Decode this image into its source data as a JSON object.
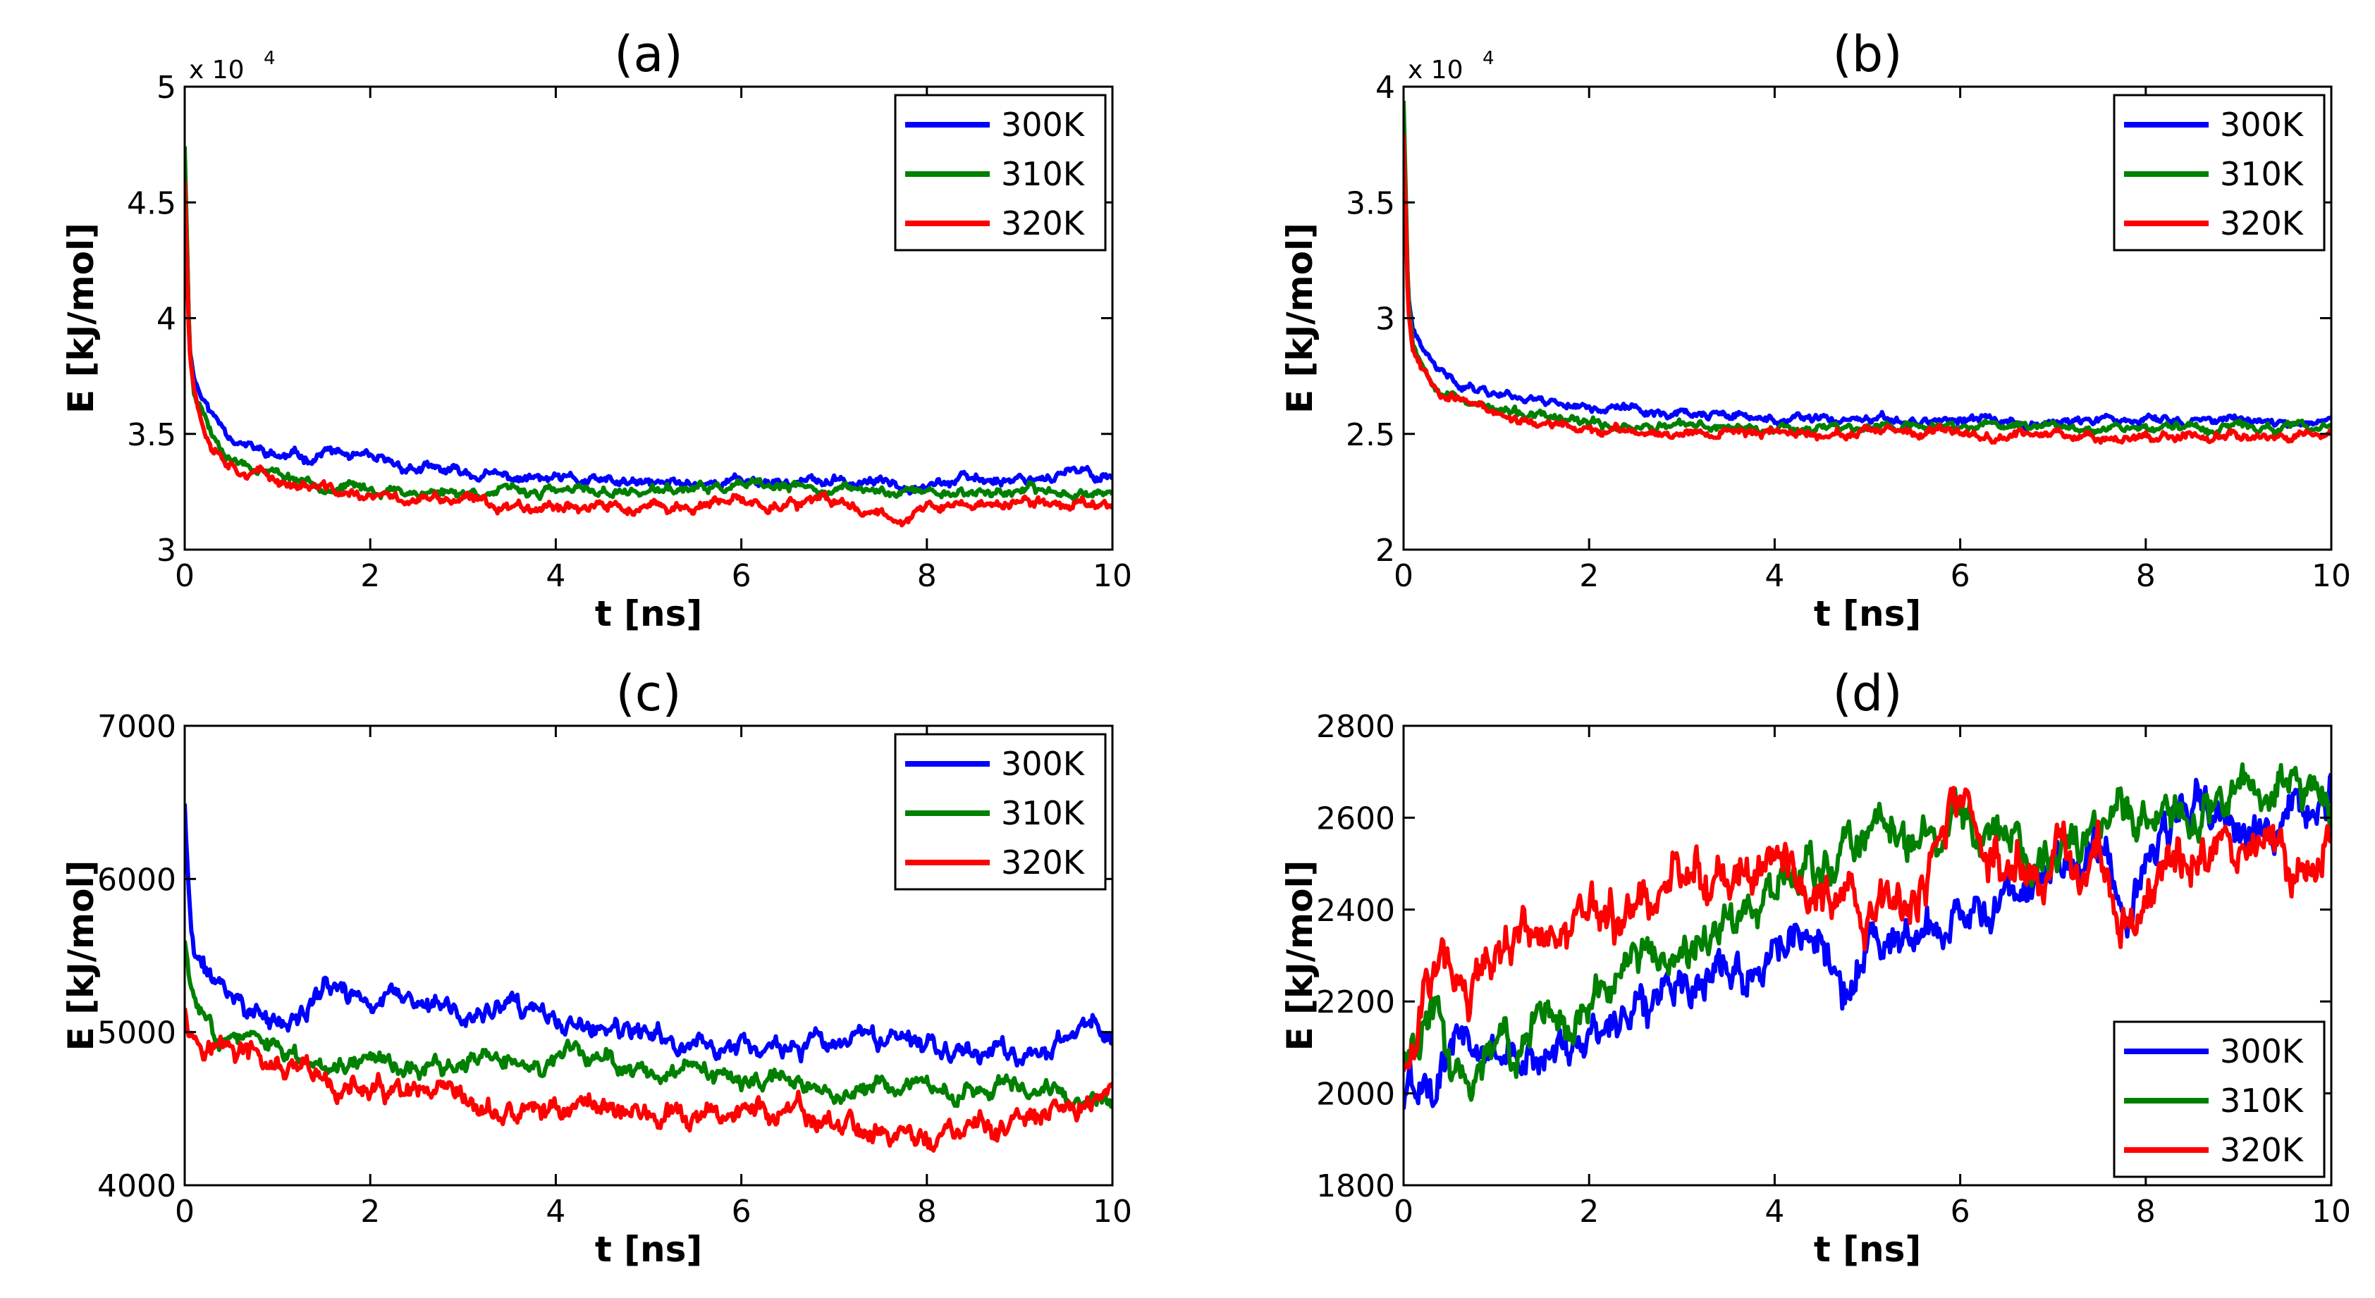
{
  "figure": {
    "panel_count": 4
  },
  "colors": {
    "300K": "#0000ff",
    "310K": "#008000",
    "320K": "#ff0000"
  },
  "chart_data": [
    {
      "type": "line",
      "title": "(a)",
      "xlabel": "t [ns]",
      "ylabel": "E [kJ/mol]",
      "xlim": [
        0,
        10
      ],
      "ylim": [
        30000,
        50000
      ],
      "xticks": [
        0,
        2,
        4,
        6,
        8,
        10
      ],
      "xtick_labels": [
        "0",
        "2",
        "4",
        "6",
        "8",
        "10"
      ],
      "yticks": [
        30000,
        35000,
        40000,
        45000,
        50000
      ],
      "ytick_labels": [
        "3",
        "3.5",
        "4",
        "4.5",
        "5"
      ],
      "y_multiplier": {
        "base": "x 10",
        "exponent": "4"
      },
      "legend": {
        "position": "top-right",
        "entries": [
          "300K",
          "310K",
          "320K"
        ]
      },
      "grid": false,
      "series": [
        {
          "name": "300K",
          "x": [
            0,
            0.05,
            0.1,
            0.2,
            0.3,
            0.5,
            0.7,
            1.0,
            1.4,
            1.5,
            2.0,
            2.5,
            3.0,
            3.5,
            4.0,
            5.0,
            6.0,
            7.0,
            8.0,
            9.0,
            9.5,
            10.0
          ],
          "y": [
            47000,
            39000,
            37500,
            36500,
            35800,
            35000,
            34400,
            34000,
            34000,
            34300,
            33800,
            33500,
            33300,
            33100,
            33000,
            32800,
            33000,
            32900,
            32900,
            33100,
            33300,
            33200
          ],
          "noise": 130,
          "seed": 11
        },
        {
          "name": "310K",
          "x": [
            0,
            0.05,
            0.1,
            0.2,
            0.3,
            0.5,
            0.7,
            1.0,
            1.5,
            2.0,
            2.5,
            3.0,
            4.0,
            5.0,
            6.0,
            7.0,
            8.0,
            9.0,
            10.0
          ],
          "y": [
            47500,
            39000,
            37000,
            36000,
            35000,
            34000,
            33700,
            33300,
            32800,
            32600,
            32500,
            32500,
            32500,
            32500,
            32700,
            32600,
            32500,
            32500,
            32500
          ],
          "noise": 120,
          "seed": 23
        },
        {
          "name": "320K",
          "x": [
            0,
            0.05,
            0.1,
            0.2,
            0.3,
            0.5,
            0.7,
            1.0,
            1.5,
            2.0,
            2.5,
            3.0,
            3.5,
            4.0,
            5.0,
            6.0,
            7.0,
            7.8,
            8.0,
            9.0,
            10.0
          ],
          "y": [
            46000,
            39000,
            37000,
            35500,
            34600,
            33800,
            33400,
            33000,
            32600,
            32200,
            32200,
            32100,
            31900,
            32000,
            31700,
            32000,
            32000,
            31400,
            31800,
            32000,
            32000
          ],
          "noise": 140,
          "seed": 37
        }
      ]
    },
    {
      "type": "line",
      "title": "(b)",
      "xlabel": "t [ns]",
      "ylabel": "E [kJ/mol]",
      "xlim": [
        0,
        10
      ],
      "ylim": [
        20000,
        40000
      ],
      "xticks": [
        0,
        2,
        4,
        6,
        8,
        10
      ],
      "xtick_labels": [
        "0",
        "2",
        "4",
        "6",
        "8",
        "10"
      ],
      "yticks": [
        20000,
        25000,
        30000,
        35000,
        40000
      ],
      "ytick_labels": [
        "2",
        "2.5",
        "3",
        "3.5",
        "4"
      ],
      "y_multiplier": {
        "base": "x 10",
        "exponent": "4"
      },
      "legend": {
        "position": "top-right",
        "entries": [
          "300K",
          "310K",
          "320K"
        ]
      },
      "grid": false,
      "series": [
        {
          "name": "300K",
          "x": [
            0,
            0.05,
            0.1,
            0.2,
            0.4,
            0.6,
            0.8,
            1.0,
            1.5,
            2.0,
            3.0,
            4.0,
            5.0,
            6.0,
            7.0,
            8.0,
            9.0,
            10.0
          ],
          "y": [
            38000,
            31000,
            29500,
            28500,
            27600,
            27200,
            27000,
            26800,
            26500,
            26200,
            25900,
            25600,
            25500,
            25600,
            25500,
            25600,
            25600,
            25500
          ],
          "noise": 110,
          "seed": 41
        },
        {
          "name": "310K",
          "x": [
            0,
            0.05,
            0.1,
            0.2,
            0.4,
            0.6,
            0.8,
            1.0,
            1.5,
            2.0,
            3.0,
            4.0,
            5.0,
            6.0,
            7.0,
            8.0,
            9.0,
            10.0
          ],
          "y": [
            39500,
            31000,
            29000,
            28000,
            27000,
            26600,
            26300,
            26000,
            25700,
            25400,
            25300,
            25300,
            25300,
            25300,
            25400,
            25300,
            25300,
            25200
          ],
          "noise": 110,
          "seed": 53
        },
        {
          "name": "320K",
          "x": [
            0,
            0.05,
            0.1,
            0.2,
            0.4,
            0.6,
            0.8,
            1.0,
            1.5,
            2.0,
            3.0,
            4.0,
            5.0,
            6.0,
            7.0,
            8.0,
            9.0,
            10.0
          ],
          "y": [
            38000,
            30500,
            28800,
            27800,
            26900,
            26500,
            26200,
            25900,
            25400,
            25100,
            25100,
            25100,
            25000,
            25000,
            25000,
            24900,
            25000,
            25000
          ],
          "noise": 110,
          "seed": 67
        }
      ]
    },
    {
      "type": "line",
      "title": "(c)",
      "xlabel": "t [ns]",
      "ylabel": "E [kJ/mol]",
      "xlim": [
        0,
        10
      ],
      "ylim": [
        4000,
        7000
      ],
      "xticks": [
        0,
        2,
        4,
        6,
        8,
        10
      ],
      "xtick_labels": [
        "0",
        "2",
        "4",
        "6",
        "8",
        "10"
      ],
      "yticks": [
        4000,
        5000,
        6000,
        7000
      ],
      "ytick_labels": [
        "4000",
        "5000",
        "6000",
        "7000"
      ],
      "legend": {
        "position": "top-right",
        "entries": [
          "300K",
          "310K",
          "320K"
        ]
      },
      "grid": false,
      "series": [
        {
          "name": "300K",
          "x": [
            0,
            0.05,
            0.1,
            0.2,
            0.4,
            0.7,
            1.0,
            1.3,
            1.5,
            2.0,
            2.5,
            3.0,
            3.5,
            4.0,
            4.5,
            5.0,
            6.0,
            7.0,
            8.0,
            8.5,
            9.0,
            9.5,
            9.8,
            10.0
          ],
          "y": [
            6500,
            5800,
            5500,
            5400,
            5300,
            5150,
            5050,
            5100,
            5300,
            5200,
            5200,
            5100,
            5150,
            5050,
            5000,
            4950,
            4900,
            4900,
            4950,
            4900,
            4850,
            4950,
            5050,
            4900
          ],
          "noise": 40,
          "seed": 71
        },
        {
          "name": "310K",
          "x": [
            0,
            0.05,
            0.1,
            0.2,
            0.4,
            0.7,
            1.0,
            1.5,
            2.0,
            2.5,
            3.0,
            3.5,
            4.0,
            4.5,
            5.0,
            5.5,
            6.0,
            6.5,
            7.0,
            7.5,
            8.0,
            8.5,
            9.0,
            9.5,
            10.0
          ],
          "y": [
            5600,
            5350,
            5200,
            5100,
            5000,
            4950,
            4850,
            4800,
            4850,
            4750,
            4800,
            4800,
            4800,
            4850,
            4750,
            4700,
            4650,
            4700,
            4600,
            4650,
            4600,
            4650,
            4700,
            4600,
            4500
          ],
          "noise": 35,
          "seed": 83
        },
        {
          "name": "320K",
          "x": [
            0,
            0.05,
            0.1,
            0.2,
            0.4,
            0.7,
            1.0,
            1.5,
            2.0,
            2.5,
            3.0,
            3.5,
            4.0,
            4.5,
            5.0,
            5.5,
            6.0,
            6.5,
            7.0,
            7.5,
            8.0,
            8.5,
            9.0,
            9.5,
            10.0
          ],
          "y": [
            5200,
            5050,
            5000,
            4950,
            4900,
            4850,
            4750,
            4650,
            4600,
            4550,
            4500,
            4450,
            4500,
            4550,
            4450,
            4400,
            4500,
            4450,
            4400,
            4350,
            4300,
            4350,
            4400,
            4450,
            4650
          ],
          "noise": 45,
          "seed": 97
        }
      ]
    },
    {
      "type": "line",
      "title": "(d)",
      "xlabel": "t [ns]",
      "ylabel": "E [kJ/mol]",
      "xlim": [
        0,
        10
      ],
      "ylim": [
        1800,
        2800
      ],
      "xticks": [
        0,
        2,
        4,
        6,
        8,
        10
      ],
      "xtick_labels": [
        "0",
        "2",
        "4",
        "6",
        "8",
        "10"
      ],
      "yticks": [
        1800,
        2000,
        2200,
        2400,
        2600,
        2800
      ],
      "ytick_labels": [
        "1800",
        "2000",
        "2200",
        "2400",
        "2600",
        "2800"
      ],
      "legend": {
        "position": "bottom-right",
        "entries": [
          "300K",
          "310K",
          "320K"
        ]
      },
      "grid": false,
      "series": [
        {
          "name": "300K",
          "x": [
            0,
            0.3,
            0.6,
            1.0,
            1.5,
            2.0,
            2.5,
            3.0,
            3.5,
            4.0,
            4.5,
            4.8,
            5.0,
            5.5,
            6.0,
            6.5,
            7.0,
            7.5,
            7.8,
            8.0,
            8.5,
            9.0,
            9.5,
            10.0
          ],
          "y": [
            1980,
            2050,
            2100,
            2100,
            2080,
            2120,
            2200,
            2250,
            2280,
            2300,
            2340,
            2200,
            2330,
            2350,
            2380,
            2420,
            2480,
            2550,
            2400,
            2520,
            2650,
            2560,
            2620,
            2650
          ],
          "noise": 28,
          "seed": 101
        },
        {
          "name": "310K",
          "x": [
            0,
            0.3,
            0.6,
            1.0,
            1.5,
            2.0,
            2.5,
            3.0,
            3.5,
            4.0,
            4.5,
            5.0,
            5.5,
            6.0,
            6.5,
            7.0,
            7.5,
            8.0,
            8.5,
            9.0,
            9.5,
            10.0
          ],
          "y": [
            2100,
            2150,
            2050,
            2100,
            2150,
            2200,
            2280,
            2300,
            2380,
            2450,
            2500,
            2550,
            2550,
            2580,
            2550,
            2500,
            2600,
            2580,
            2620,
            2620,
            2700,
            2650
          ],
          "noise": 28,
          "seed": 113
        },
        {
          "name": "320K",
          "x": [
            0,
            0.2,
            0.4,
            0.7,
            1.0,
            1.3,
            1.6,
            2.0,
            2.5,
            3.0,
            3.5,
            4.0,
            4.5,
            5.0,
            5.5,
            6.0,
            6.5,
            7.0,
            7.5,
            7.7,
            8.0,
            8.5,
            9.0,
            9.5,
            10.0
          ],
          "y": [
            2050,
            2250,
            2300,
            2250,
            2300,
            2350,
            2380,
            2350,
            2400,
            2450,
            2480,
            2500,
            2450,
            2400,
            2420,
            2600,
            2500,
            2500,
            2500,
            2300,
            2450,
            2500,
            2550,
            2500,
            2550
          ],
          "noise": 32,
          "seed": 127
        }
      ]
    }
  ]
}
